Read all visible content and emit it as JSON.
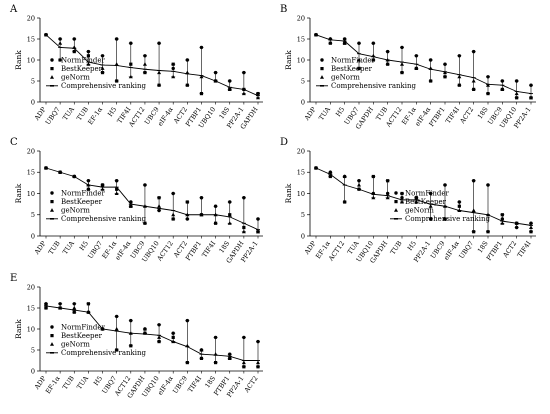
{
  "symbols": {
    "normfinder": "NormFinder",
    "bestkeeper": "BestKeeper",
    "genorm": "geNorm",
    "comprehensive": "Comprehensive ranking"
  },
  "chart_data": [
    {
      "type": "line",
      "label": "A",
      "ylabel": "Rank",
      "ylim": [
        0,
        20
      ],
      "yticks": [
        0,
        5,
        10,
        15,
        20
      ],
      "legend": "bottom-left",
      "categories": [
        "ADP",
        "UBQ7",
        "TUA",
        "TUB",
        "EF-1α",
        "H5",
        "TIF4I",
        "ACT12",
        "UBC9",
        "eIF-4α",
        "ACT2",
        "PTBP1",
        "UBQ10",
        "18S",
        "PP2A-1",
        "GAPDH"
      ],
      "series": [
        {
          "name": "NormFinder",
          "values": [
            16,
            15,
            15,
            12,
            11,
            15,
            14,
            11,
            14,
            8,
            10,
            13,
            7,
            5,
            7,
            2
          ]
        },
        {
          "name": "BestKeeper",
          "values": [
            16,
            10,
            12,
            11,
            7,
            5,
            9,
            7,
            4,
            9,
            4,
            2,
            5,
            3,
            3,
            2
          ]
        },
        {
          "name": "geNorm",
          "values": [
            16,
            14,
            13,
            9,
            8,
            9,
            6,
            9,
            7,
            6,
            7,
            6,
            5,
            3,
            2,
            1
          ]
        },
        {
          "name": "Comprehensive ranking",
          "values": [
            16,
            13,
            12.8,
            9.5,
            8.8,
            8.7,
            8.2,
            7.8,
            7.5,
            7.3,
            6.7,
            6.3,
            5,
            3.5,
            3,
            1.5
          ]
        }
      ]
    },
    {
      "type": "line",
      "label": "B",
      "ylabel": "Rank",
      "ylim": [
        0,
        20
      ],
      "yticks": [
        0,
        5,
        10,
        15,
        20
      ],
      "legend": "bottom-left",
      "categories": [
        "ADP",
        "TUA",
        "H5",
        "UBQ7",
        "GAPDH",
        "TUB",
        "ACT12",
        "EF-1α",
        "eIF-4α",
        "PTBP1",
        "TIF4I",
        "ACT2",
        "18S",
        "UBC9",
        "UBQ10",
        "PP2A-1"
      ],
      "series": [
        {
          "name": "NormFinder",
          "values": [
            16,
            15,
            15,
            14,
            14,
            12,
            13,
            11,
            10,
            9,
            11,
            12,
            6,
            5,
            5,
            4
          ]
        },
        {
          "name": "BestKeeper",
          "values": [
            16,
            14,
            14,
            8,
            10,
            9,
            7,
            8,
            5,
            6,
            4,
            3,
            2,
            3,
            1,
            1
          ]
        },
        {
          "name": "geNorm",
          "values": [
            16,
            15,
            14,
            10,
            11,
            10,
            9,
            8,
            8,
            7,
            6,
            5,
            4,
            3,
            2,
            1
          ]
        },
        {
          "name": "Comprehensive ranking",
          "values": [
            16,
            14.8,
            14.5,
            11.5,
            10.8,
            10,
            9.5,
            9,
            7.8,
            7.2,
            6.5,
            5.8,
            4.2,
            4,
            2.5,
            2
          ]
        }
      ]
    },
    {
      "type": "line",
      "label": "C",
      "ylabel": "Rank",
      "ylim": [
        0,
        20
      ],
      "yticks": [
        0,
        5,
        10,
        15,
        20
      ],
      "legend": "bottom-left",
      "categories": [
        "ADP",
        "TUB",
        "TUA",
        "H5",
        "UBQ7",
        "EF-1α",
        "eIF-4α",
        "UBC9",
        "UBQ10",
        "ACT12",
        "ACT2",
        "PTBP1",
        "TIF4I",
        "18S",
        "GAPDH",
        "PP2A-1"
      ],
      "series": [
        {
          "name": "NormFinder",
          "values": [
            16,
            15,
            14,
            13,
            12,
            13,
            8,
            12,
            6,
            10,
            4,
            9,
            7,
            8,
            9,
            4
          ]
        },
        {
          "name": "BestKeeper",
          "values": [
            16,
            15,
            14,
            11,
            12,
            11,
            7,
            3,
            9,
            4,
            8,
            5,
            3,
            5,
            2,
            1
          ]
        },
        {
          "name": "geNorm",
          "values": [
            16,
            15,
            14,
            12,
            11,
            10,
            7,
            7,
            7,
            5,
            5,
            5,
            5,
            3,
            1,
            1
          ]
        },
        {
          "name": "Comprehensive ranking",
          "values": [
            16,
            15,
            14,
            12,
            11.5,
            11.5,
            7.5,
            7,
            6.5,
            6,
            5,
            5,
            5,
            4.5,
            3,
            1.5
          ]
        }
      ]
    },
    {
      "type": "line",
      "label": "D",
      "ylabel": "Rank",
      "ylim": [
        0,
        20
      ],
      "yticks": [
        0,
        5,
        10,
        15,
        20
      ],
      "legend": "bottom-right",
      "categories": [
        "ADP",
        "EF-1α",
        "ACT12",
        "TUA",
        "UBQ10",
        "GAPDH",
        "TUB",
        "H5",
        "PP2A-1",
        "UBC9",
        "eIF-4α",
        "UBQ7",
        "18S",
        "PTBP1",
        "ACT2",
        "TIF4I"
      ],
      "series": [
        {
          "name": "NormFinder",
          "values": [
            16,
            15,
            14,
            13,
            10,
            10,
            9,
            9,
            10,
            12,
            8,
            13,
            12,
            4,
            2,
            3
          ]
        },
        {
          "name": "BestKeeper",
          "values": [
            16,
            14,
            8,
            11,
            14,
            13,
            10,
            9,
            4,
            4,
            7,
            1,
            1,
            5,
            3,
            1
          ]
        },
        {
          "name": "geNorm",
          "values": [
            16,
            15,
            14,
            12,
            9,
            9,
            8,
            8,
            7,
            7,
            6,
            6,
            5,
            3,
            3,
            2
          ]
        },
        {
          "name": "Comprehensive ranking",
          "values": [
            16,
            14.5,
            12,
            11,
            9.8,
            9.5,
            8.5,
            8.5,
            7.5,
            7,
            6,
            5.5,
            5,
            3.5,
            3,
            2.5
          ]
        }
      ]
    },
    {
      "type": "line",
      "label": "E",
      "ylabel": "Rank",
      "ylim": [
        0,
        20
      ],
      "yticks": [
        0,
        5,
        10,
        15,
        20
      ],
      "legend": "bottom-left",
      "categories": [
        "ADP",
        "EF-1α",
        "TUB",
        "TUA",
        "H5",
        "UBQ7",
        "ACT12",
        "GAPDH",
        "UBQ10",
        "eIF-4α",
        "UBC9",
        "TIF4I",
        "18S",
        "PTBP1",
        "PP2A-1",
        "ACT2"
      ],
      "series": [
        {
          "name": "NormFinder",
          "values": [
            16,
            16,
            16,
            14,
            10,
            13,
            12,
            10,
            11,
            9,
            12,
            5,
            8,
            4,
            8,
            7
          ]
        },
        {
          "name": "BestKeeper",
          "values": [
            15,
            15,
            14,
            16,
            10,
            5,
            6,
            9,
            7,
            8,
            2,
            3,
            2,
            3,
            1,
            1
          ]
        },
        {
          "name": "geNorm",
          "values": [
            16,
            15,
            15,
            14,
            10,
            10,
            9,
            10,
            8,
            7,
            6,
            5,
            4,
            3,
            2,
            2
          ]
        },
        {
          "name": "Comprehensive ranking",
          "values": [
            15.5,
            15,
            14.5,
            14,
            10,
            9.5,
            9,
            8.8,
            8.5,
            7,
            5.8,
            4,
            3.8,
            3.5,
            2.5,
            2.5
          ]
        }
      ]
    }
  ]
}
